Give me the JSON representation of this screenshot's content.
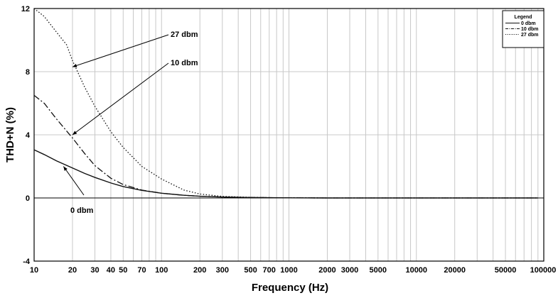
{
  "chart_data": {
    "type": "line",
    "xlabel": "Frequency (Hz)",
    "ylabel": "THD+N (%)",
    "x_scale": "log",
    "xlim": [
      10,
      100000
    ],
    "ylim": [
      -4,
      12
    ],
    "grid": true,
    "x_ticks": [
      10,
      20,
      30,
      40,
      50,
      70,
      100,
      200,
      300,
      500,
      700,
      1000,
      2000,
      3000,
      5000,
      10000,
      20000,
      50000,
      100000
    ],
    "x_tick_labels": [
      "10",
      "20",
      "30",
      "40",
      "50",
      "70",
      "100",
      "200",
      "300",
      "500",
      "700",
      "1000",
      "2000",
      "3000",
      "5000",
      "10000",
      "20000",
      "50000",
      "100000"
    ],
    "y_ticks": [
      -4,
      0,
      4,
      8,
      12
    ],
    "y_tick_labels": [
      "-4",
      "0",
      "4",
      "8",
      "12"
    ],
    "legend": {
      "title": "Legend",
      "position": "top-right",
      "entries": [
        "0 dbm",
        "10 dbm",
        "27 dbm"
      ]
    },
    "series": [
      {
        "name": "0 dbm",
        "style": "solid",
        "x": [
          10,
          12,
          15,
          20,
          25,
          30,
          40,
          50,
          70,
          100,
          150,
          200,
          300,
          500,
          700,
          1000,
          2000,
          5000,
          10000,
          20000,
          50000,
          90000
        ],
        "y": [
          3.05,
          2.75,
          2.35,
          1.9,
          1.55,
          1.3,
          0.95,
          0.72,
          0.48,
          0.3,
          0.17,
          0.11,
          0.06,
          0.03,
          0.02,
          0.01,
          0.0,
          0.0,
          0.0,
          0.0,
          0.0,
          0.0
        ]
      },
      {
        "name": "10 dbm",
        "style": "dashdot",
        "x": [
          10,
          12,
          15,
          20,
          25,
          30,
          40,
          50,
          70,
          100,
          150,
          200,
          300,
          500,
          700,
          1000,
          2000,
          5000,
          10000,
          20000,
          50000,
          90000
        ],
        "y": [
          6.5,
          6.0,
          5.0,
          3.8,
          2.8,
          2.05,
          1.25,
          0.85,
          0.5,
          0.3,
          0.17,
          0.11,
          0.06,
          0.03,
          0.02,
          0.01,
          0.0,
          0.0,
          0.0,
          0.0,
          0.0,
          0.0
        ]
      },
      {
        "name": "27 dbm",
        "style": "dotted",
        "x": [
          10,
          12,
          15,
          18,
          20,
          25,
          30,
          40,
          50,
          70,
          100,
          150,
          200,
          300,
          500,
          700,
          1000,
          2000,
          5000,
          10000,
          20000,
          50000,
          90000
        ],
        "y": [
          12.0,
          11.5,
          10.5,
          9.7,
          8.7,
          7.0,
          5.8,
          4.2,
          3.2,
          2.0,
          1.2,
          0.5,
          0.25,
          0.1,
          0.04,
          0.02,
          0.01,
          0.0,
          0.0,
          0.0,
          0.0,
          0.0,
          0.0
        ]
      }
    ],
    "annotations": [
      {
        "text": "27 dbm",
        "series": "27 dbm",
        "point_x": 20,
        "point_y": 8.3
      },
      {
        "text": "10 dbm",
        "series": "10 dbm",
        "point_x": 20,
        "point_y": 4.0
      },
      {
        "text": "0 dbm",
        "series": "0 dbm",
        "point_x": 17,
        "point_y": 2.0
      }
    ]
  }
}
